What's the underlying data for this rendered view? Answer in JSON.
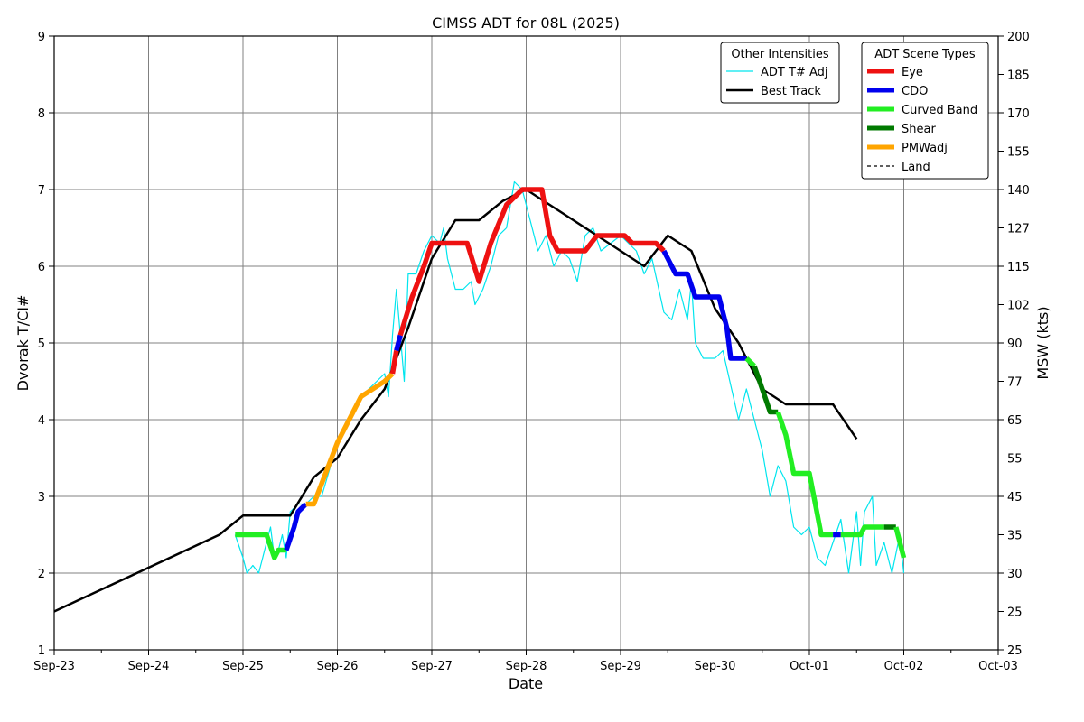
{
  "chart_data": {
    "type": "line",
    "title": "CIMSS ADT for 08L (2025)",
    "xlabel": "Date",
    "ylabel": "Dvorak T/CI#",
    "y2label": "MSW (kts)",
    "grid": true,
    "xlim": [
      "2025-09-23",
      "2025-10-03"
    ],
    "ylim": [
      1,
      9
    ],
    "x_ticks": [
      "Sep-23",
      "Sep-24",
      "Sep-25",
      "Sep-26",
      "Sep-27",
      "Sep-28",
      "Sep-29",
      "Sep-30",
      "Oct-01",
      "Oct-02",
      "Oct-03"
    ],
    "y_ticks": [
      1,
      2,
      3,
      4,
      5,
      6,
      7,
      8,
      9
    ],
    "y2_ticks": [
      {
        "t": 1,
        "label": "25"
      },
      {
        "t": 1.5,
        "label": "25"
      },
      {
        "t": 2,
        "label": "30"
      },
      {
        "t": 2.5,
        "label": "35"
      },
      {
        "t": 3,
        "label": "45"
      },
      {
        "t": 3.5,
        "label": "55"
      },
      {
        "t": 4,
        "label": "65"
      },
      {
        "t": 4.5,
        "label": "77"
      },
      {
        "t": 5,
        "label": "90"
      },
      {
        "t": 5.5,
        "label": "102"
      },
      {
        "t": 6,
        "label": "115"
      },
      {
        "t": 6.5,
        "label": "127"
      },
      {
        "t": 7,
        "label": "140"
      },
      {
        "t": 7.5,
        "label": "155"
      },
      {
        "t": 8,
        "label": "170"
      },
      {
        "t": 8.5,
        "label": "185"
      },
      {
        "t": 9,
        "label": "200"
      }
    ],
    "legends": [
      {
        "title": "Other Intensities",
        "placement": "top-right",
        "entries": [
          {
            "label": "ADT T# Adj",
            "color": "#00e5ee",
            "style": "thin"
          },
          {
            "label": "Best Track",
            "color": "#000000",
            "style": "medium"
          }
        ]
      },
      {
        "title": "ADT Scene Types",
        "placement": "top-right",
        "entries": [
          {
            "label": "Eye",
            "color": "#ee1111",
            "style": "thick"
          },
          {
            "label": "CDO",
            "color": "#0000ee",
            "style": "thick"
          },
          {
            "label": "Curved Band",
            "color": "#22ee22",
            "style": "thick"
          },
          {
            "label": "Shear",
            "color": "#007a00",
            "style": "thick"
          },
          {
            "label": "PMWadj",
            "color": "#ffa500",
            "style": "thick"
          },
          {
            "label": "Land",
            "color": "#000000",
            "style": "dashed"
          }
        ]
      }
    ],
    "series": [
      {
        "name": "Best Track",
        "color": "#000000",
        "points": [
          [
            "2025-09-23 00:00",
            1.5
          ],
          [
            "2025-09-24 18:00",
            2.5
          ],
          [
            "2025-09-25 00:00",
            2.75
          ],
          [
            "2025-09-25 12:00",
            2.75
          ],
          [
            "2025-09-25 18:00",
            3.25
          ],
          [
            "2025-09-26 00:00",
            3.5
          ],
          [
            "2025-09-26 06:00",
            4.0
          ],
          [
            "2025-09-26 12:00",
            4.4
          ],
          [
            "2025-09-26 18:00",
            5.2
          ],
          [
            "2025-09-27 00:00",
            6.1
          ],
          [
            "2025-09-27 06:00",
            6.6
          ],
          [
            "2025-09-27 12:00",
            6.6
          ],
          [
            "2025-09-27 18:00",
            6.85
          ],
          [
            "2025-09-28 00:00",
            7.0
          ],
          [
            "2025-09-28 06:00",
            6.8
          ],
          [
            "2025-09-28 12:00",
            6.6
          ],
          [
            "2025-09-28 18:00",
            6.4
          ],
          [
            "2025-09-29 00:00",
            6.2
          ],
          [
            "2025-09-29 06:00",
            6.0
          ],
          [
            "2025-09-29 12:00",
            6.4
          ],
          [
            "2025-09-29 18:00",
            6.2
          ],
          [
            "2025-09-30 00:00",
            5.45
          ],
          [
            "2025-09-30 06:00",
            5.0
          ],
          [
            "2025-09-30 12:00",
            4.4
          ],
          [
            "2025-09-30 18:00",
            4.2
          ],
          [
            "2025-10-01 00:00",
            4.2
          ],
          [
            "2025-10-01 06:00",
            4.2
          ],
          [
            "2025-10-01 12:00",
            3.75
          ]
        ]
      },
      {
        "name": "ADT T# Adj",
        "color": "#00e5ee",
        "points": [
          [
            "2025-09-24 22:00",
            2.5
          ],
          [
            "2025-09-25 00:00",
            2.2
          ],
          [
            "2025-09-25 01:00",
            2.0
          ],
          [
            "2025-09-25 02:30",
            2.1
          ],
          [
            "2025-09-25 04:00",
            2.0
          ],
          [
            "2025-09-25 05:00",
            2.2
          ],
          [
            "2025-09-25 06:00",
            2.4
          ],
          [
            "2025-09-25 07:00",
            2.6
          ],
          [
            "2025-09-25 08:00",
            2.2
          ],
          [
            "2025-09-25 09:00",
            2.3
          ],
          [
            "2025-09-25 10:00",
            2.5
          ],
          [
            "2025-09-25 11:00",
            2.2
          ],
          [
            "2025-09-25 12:00",
            2.8
          ],
          [
            "2025-09-25 14:00",
            2.9
          ],
          [
            "2025-09-25 16:00",
            2.9
          ],
          [
            "2025-09-25 18:00",
            3.0
          ],
          [
            "2025-09-25 20:00",
            3.0
          ],
          [
            "2025-09-26 00:00",
            3.7
          ],
          [
            "2025-09-26 06:00",
            4.3
          ],
          [
            "2025-09-26 12:00",
            4.6
          ],
          [
            "2025-09-26 13:00",
            4.3
          ],
          [
            "2025-09-26 14:00",
            5.1
          ],
          [
            "2025-09-26 15:00",
            5.7
          ],
          [
            "2025-09-26 16:00",
            5.1
          ],
          [
            "2025-09-26 17:00",
            4.5
          ],
          [
            "2025-09-26 18:00",
            5.9
          ],
          [
            "2025-09-26 20:00",
            5.9
          ],
          [
            "2025-09-26 22:00",
            6.2
          ],
          [
            "2025-09-27 00:00",
            6.4
          ],
          [
            "2025-09-27 02:00",
            6.3
          ],
          [
            "2025-09-27 03:00",
            6.5
          ],
          [
            "2025-09-27 04:00",
            6.1
          ],
          [
            "2025-09-27 06:00",
            5.7
          ],
          [
            "2025-09-27 08:00",
            5.7
          ],
          [
            "2025-09-27 10:00",
            5.8
          ],
          [
            "2025-09-27 11:00",
            5.5
          ],
          [
            "2025-09-27 13:00",
            5.7
          ],
          [
            "2025-09-27 15:00",
            6.0
          ],
          [
            "2025-09-27 17:00",
            6.4
          ],
          [
            "2025-09-27 19:00",
            6.5
          ],
          [
            "2025-09-27 21:00",
            7.1
          ],
          [
            "2025-09-27 23:00",
            7.0
          ],
          [
            "2025-09-28 01:00",
            6.6
          ],
          [
            "2025-09-28 03:00",
            6.2
          ],
          [
            "2025-09-28 05:00",
            6.4
          ],
          [
            "2025-09-28 07:00",
            6.0
          ],
          [
            "2025-09-28 09:00",
            6.2
          ],
          [
            "2025-09-28 11:00",
            6.1
          ],
          [
            "2025-09-28 13:00",
            5.8
          ],
          [
            "2025-09-28 15:00",
            6.4
          ],
          [
            "2025-09-28 17:00",
            6.5
          ],
          [
            "2025-09-28 19:00",
            6.2
          ],
          [
            "2025-09-29 00:00",
            6.4
          ],
          [
            "2025-09-29 04:00",
            6.2
          ],
          [
            "2025-09-29 06:00",
            5.9
          ],
          [
            "2025-09-29 08:00",
            6.1
          ],
          [
            "2025-09-29 11:00",
            5.4
          ],
          [
            "2025-09-29 13:00",
            5.3
          ],
          [
            "2025-09-29 15:00",
            5.7
          ],
          [
            "2025-09-29 17:00",
            5.3
          ],
          [
            "2025-09-29 18:00",
            5.8
          ],
          [
            "2025-09-29 19:00",
            5.0
          ],
          [
            "2025-09-29 21:00",
            4.8
          ],
          [
            "2025-09-30 00:00",
            4.8
          ],
          [
            "2025-09-30 02:00",
            4.9
          ],
          [
            "2025-09-30 06:00",
            4.0
          ],
          [
            "2025-09-30 08:00",
            4.4
          ],
          [
            "2025-09-30 10:00",
            4.0
          ],
          [
            "2025-09-30 12:00",
            3.6
          ],
          [
            "2025-09-30 14:00",
            3.0
          ],
          [
            "2025-09-30 16:00",
            3.4
          ],
          [
            "2025-09-30 18:00",
            3.2
          ],
          [
            "2025-09-30 20:00",
            2.6
          ],
          [
            "2025-09-30 22:00",
            2.5
          ],
          [
            "2025-10-01 00:00",
            2.6
          ],
          [
            "2025-10-01 02:00",
            2.2
          ],
          [
            "2025-10-01 04:00",
            2.1
          ],
          [
            "2025-10-01 06:00",
            2.4
          ],
          [
            "2025-10-01 08:00",
            2.7
          ],
          [
            "2025-10-01 10:00",
            2.0
          ],
          [
            "2025-10-01 12:00",
            2.8
          ],
          [
            "2025-10-01 13:00",
            2.1
          ],
          [
            "2025-10-01 14:00",
            2.8
          ],
          [
            "2025-10-01 16:00",
            3.0
          ],
          [
            "2025-10-01 17:00",
            2.1
          ],
          [
            "2025-10-01 19:00",
            2.4
          ],
          [
            "2025-10-01 21:00",
            2.0
          ],
          [
            "2025-10-01 23:00",
            2.5
          ],
          [
            "2025-10-02 00:00",
            2.0
          ]
        ]
      },
      {
        "name": "ADT Scene Types",
        "segments": [
          {
            "scene": "Curved Band",
            "color": "#22ee22",
            "points": [
              [
                "2025-09-24 22:00",
                2.5
              ],
              [
                "2025-09-25 06:00",
                2.5
              ],
              [
                "2025-09-25 08:00",
                2.2
              ],
              [
                "2025-09-25 09:00",
                2.3
              ],
              [
                "2025-09-25 11:00",
                2.3
              ]
            ]
          },
          {
            "scene": "CDO",
            "color": "#0000ee",
            "points": [
              [
                "2025-09-25 11:00",
                2.3
              ],
              [
                "2025-09-25 13:00",
                2.6
              ],
              [
                "2025-09-25 14:00",
                2.8
              ],
              [
                "2025-09-25 16:00",
                2.9
              ]
            ]
          },
          {
            "scene": "PMWadj",
            "color": "#ffa500",
            "points": [
              [
                "2025-09-25 16:00",
                2.9
              ],
              [
                "2025-09-25 18:00",
                2.9
              ],
              [
                "2025-09-26 00:00",
                3.7
              ],
              [
                "2025-09-26 06:00",
                4.3
              ],
              [
                "2025-09-26 09:00",
                4.4
              ],
              [
                "2025-09-26 12:00",
                4.5
              ],
              [
                "2025-09-26 14:00",
                4.6
              ]
            ]
          },
          {
            "scene": "Eye",
            "color": "#ee1111",
            "points": [
              [
                "2025-09-26 14:00",
                4.6
              ],
              [
                "2025-09-26 15:00",
                4.9
              ]
            ]
          },
          {
            "scene": "CDO",
            "color": "#0000ee",
            "points": [
              [
                "2025-09-26 15:00",
                4.9
              ],
              [
                "2025-09-26 16:00",
                5.1
              ]
            ]
          },
          {
            "scene": "Eye",
            "color": "#ee1111",
            "points": [
              [
                "2025-09-26 16:00",
                5.1
              ],
              [
                "2025-09-26 19:00",
                5.6
              ],
              [
                "2025-09-26 22:00",
                6.0
              ],
              [
                "2025-09-27 00:00",
                6.3
              ],
              [
                "2025-09-27 09:00",
                6.3
              ],
              [
                "2025-09-27 12:00",
                5.8
              ],
              [
                "2025-09-27 15:00",
                6.3
              ],
              [
                "2025-09-27 19:00",
                6.8
              ],
              [
                "2025-09-27 23:00",
                7.0
              ],
              [
                "2025-09-28 04:00",
                7.0
              ],
              [
                "2025-09-28 06:00",
                6.4
              ],
              [
                "2025-09-28 08:00",
                6.2
              ],
              [
                "2025-09-28 15:00",
                6.2
              ],
              [
                "2025-09-28 18:00",
                6.4
              ],
              [
                "2025-09-29 01:00",
                6.4
              ],
              [
                "2025-09-29 03:00",
                6.3
              ],
              [
                "2025-09-29 09:00",
                6.3
              ],
              [
                "2025-09-29 11:00",
                6.2
              ]
            ]
          },
          {
            "scene": "CDO",
            "color": "#0000ee",
            "points": [
              [
                "2025-09-29 11:00",
                6.2
              ],
              [
                "2025-09-29 14:00",
                5.9
              ],
              [
                "2025-09-29 17:00",
                5.9
              ],
              [
                "2025-09-29 19:00",
                5.6
              ],
              [
                "2025-09-30 01:00",
                5.6
              ],
              [
                "2025-09-30 03:00",
                5.2
              ],
              [
                "2025-09-30 04:00",
                4.8
              ],
              [
                "2025-09-30 08:00",
                4.8
              ]
            ]
          },
          {
            "scene": "Curved Band",
            "color": "#22ee22",
            "points": [
              [
                "2025-09-30 08:00",
                4.8
              ],
              [
                "2025-09-30 10:00",
                4.7
              ]
            ]
          },
          {
            "scene": "Shear",
            "color": "#007a00",
            "points": [
              [
                "2025-09-30 10:00",
                4.7
              ],
              [
                "2025-09-30 12:00",
                4.4
              ],
              [
                "2025-09-30 14:00",
                4.1
              ],
              [
                "2025-09-30 16:00",
                4.1
              ]
            ]
          },
          {
            "scene": "Curved Band",
            "color": "#22ee22",
            "points": [
              [
                "2025-09-30 16:00",
                4.1
              ],
              [
                "2025-09-30 18:00",
                3.8
              ],
              [
                "2025-09-30 20:00",
                3.3
              ],
              [
                "2025-10-01 00:00",
                3.3
              ],
              [
                "2025-10-01 03:00",
                2.5
              ],
              [
                "2025-10-01 06:00",
                2.5
              ]
            ]
          },
          {
            "scene": "CDO",
            "color": "#0000ee",
            "points": [
              [
                "2025-10-01 06:00",
                2.5
              ],
              [
                "2025-10-01 08:00",
                2.5
              ]
            ]
          },
          {
            "scene": "Curved Band",
            "color": "#22ee22",
            "points": [
              [
                "2025-10-01 08:00",
                2.5
              ],
              [
                "2025-10-01 13:00",
                2.5
              ],
              [
                "2025-10-01 14:00",
                2.6
              ],
              [
                "2025-10-01 19:00",
                2.6
              ]
            ]
          },
          {
            "scene": "Shear",
            "color": "#007a00",
            "points": [
              [
                "2025-10-01 19:00",
                2.6
              ],
              [
                "2025-10-01 22:00",
                2.6
              ]
            ]
          },
          {
            "scene": "Curved Band",
            "color": "#22ee22",
            "points": [
              [
                "2025-10-01 22:00",
                2.6
              ],
              [
                "2025-10-02 00:00",
                2.2
              ]
            ]
          }
        ]
      }
    ]
  }
}
